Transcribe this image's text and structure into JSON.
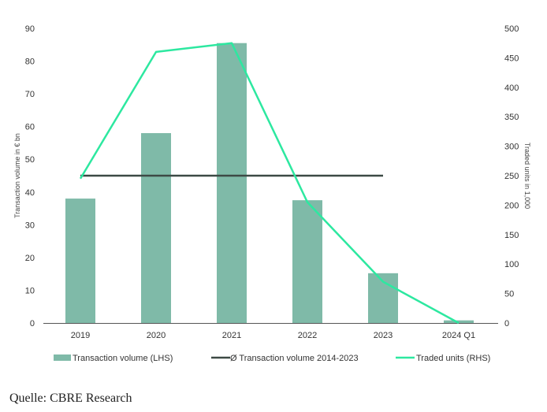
{
  "chart_data": {
    "type": "bar",
    "categories": [
      "2019",
      "2020",
      "2021",
      "2022",
      "2023",
      "2024 Q1"
    ],
    "series": [
      {
        "name": "Transaction volume (LHS)",
        "kind": "bar",
        "axis": "left",
        "values": [
          38,
          58,
          85.5,
          37.5,
          15.2,
          0.8
        ],
        "color": "#7fbaa8"
      },
      {
        "name": "Ø Transaction volume 2014-2023",
        "kind": "line",
        "axis": "left",
        "values": [
          45,
          45,
          45,
          45,
          45,
          null
        ],
        "color": "#3d4a45"
      },
      {
        "name": "Traded units (RHS)",
        "kind": "line",
        "axis": "right",
        "values": [
          245,
          460,
          475,
          205,
          70,
          0
        ],
        "color": "#2de8a0"
      }
    ],
    "ylabel": "Transaction volume in € bn",
    "y2label": "Traded units in 1,000",
    "ylim": [
      0,
      90
    ],
    "yticks": [
      "0",
      "10",
      "20",
      "30",
      "40",
      "50",
      "60",
      "70",
      "80",
      "90"
    ],
    "y2lim": [
      0,
      500
    ],
    "y2ticks": [
      "0",
      "50",
      "100",
      "150",
      "200",
      "250",
      "300",
      "350",
      "400",
      "450",
      "500"
    ],
    "grid": false,
    "legend_position": "bottom"
  },
  "source": "Quelle: CBRE Research"
}
